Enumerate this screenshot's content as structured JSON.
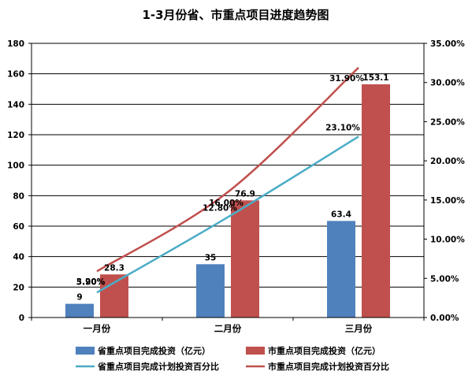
{
  "chart_data": {
    "type": "bar",
    "title": "1-3月份省、市重点项目进度趋势图",
    "categories": [
      "一月份",
      "二月份",
      "三月份"
    ],
    "series": [
      {
        "name": "省重点项目完成投资（亿元）",
        "kind": "bar",
        "axis": "left",
        "color": "#4f81bd",
        "values": [
          9,
          35,
          63.4
        ],
        "labels": [
          "9",
          "35",
          "63.4"
        ]
      },
      {
        "name": "市重点项目完成投资（亿元）",
        "kind": "bar",
        "axis": "left",
        "color": "#c0504d",
        "values": [
          28.3,
          76.9,
          153.1
        ],
        "labels": [
          "28.3",
          "76.9",
          "153.1"
        ]
      },
      {
        "name": "省重点项目完成计划投资百分比",
        "kind": "line",
        "axis": "right",
        "color": "#4bacc6",
        "values": [
          0.032,
          0.128,
          0.231
        ],
        "labels": [
          "3.20%",
          "12.80%",
          "23.10%"
        ]
      },
      {
        "name": "市重点项目完成计划投资百分比",
        "kind": "line",
        "axis": "right",
        "color": "#c0504d",
        "values": [
          0.059,
          0.16,
          0.319
        ],
        "labels": [
          "5.90%",
          "16.00%",
          "31.90%"
        ]
      }
    ],
    "ylim_left": [
      0,
      180
    ],
    "yticks_left": [
      "0",
      "20",
      "40",
      "60",
      "80",
      "100",
      "120",
      "140",
      "160",
      "180"
    ],
    "ylim_right": [
      0,
      0.35
    ],
    "yticks_right": [
      "0.00%",
      "5.00%",
      "10.00%",
      "15.00%",
      "20.00%",
      "25.00%",
      "30.00%",
      "35.00%"
    ],
    "grid": true,
    "legend_position": "bottom"
  }
}
